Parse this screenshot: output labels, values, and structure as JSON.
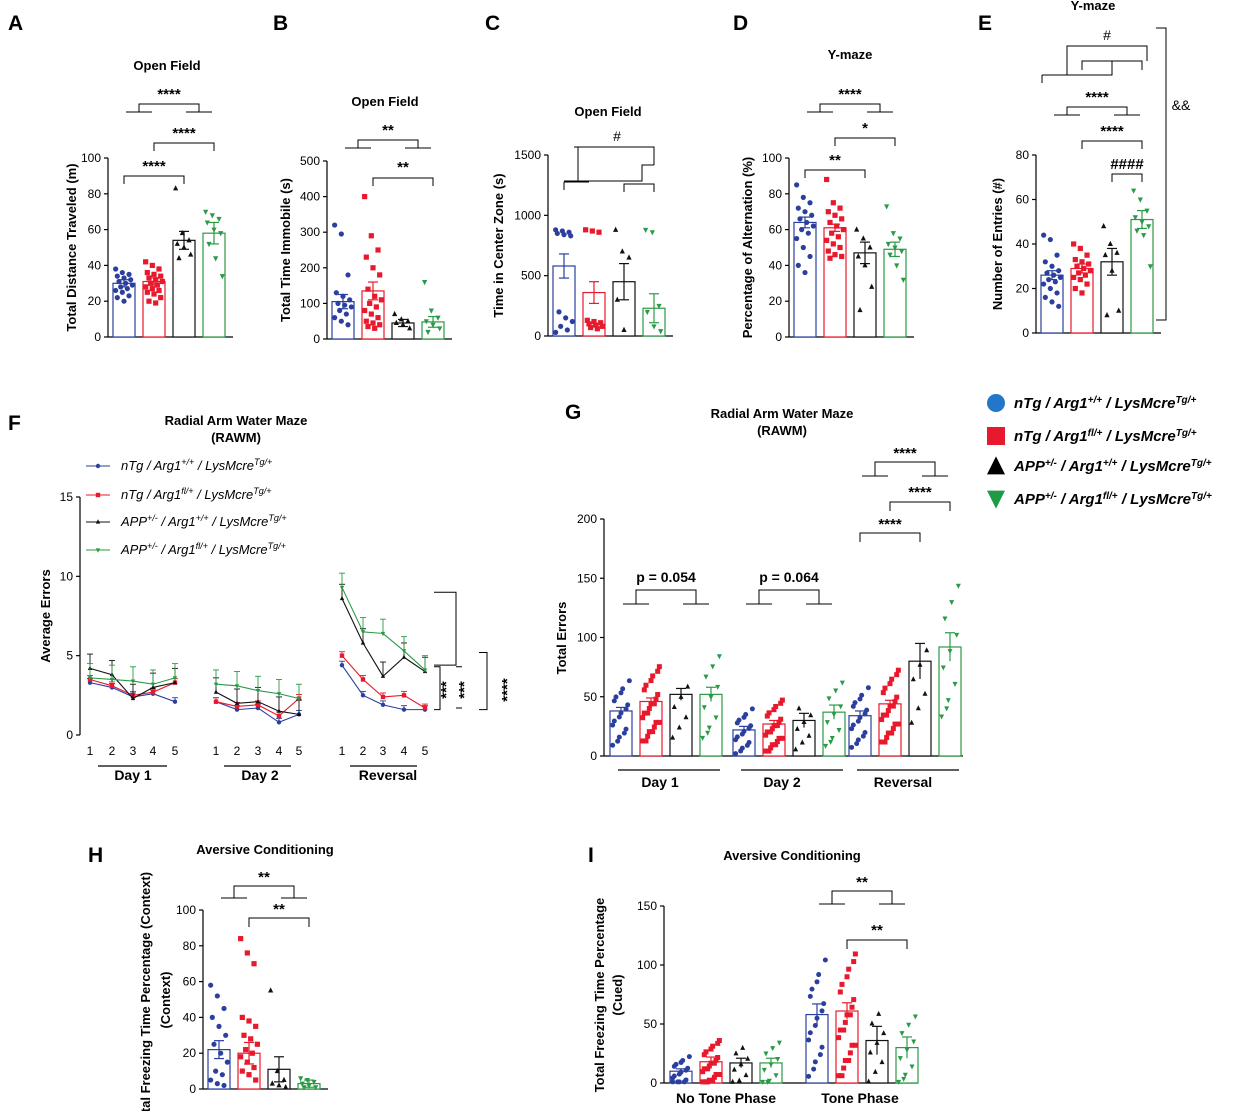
{
  "colors": {
    "g1": "#2b3f9e",
    "g2": "#e8192c",
    "g3": "#111111",
    "g4": "#2a9a46",
    "legend_blue": "#2277c8",
    "legend_green": "#1f9a46"
  },
  "legend_main": [
    {
      "label": "nTg / Arg1",
      "sup": "+/+",
      "tail": " / LysMcre",
      "tailsup": "Tg/+",
      "shape": "circle"
    },
    {
      "label": "nTg / Arg1",
      "sup": "fl/+",
      "tail": " / LysMcre",
      "tailsup": "Tg/+",
      "shape": "square"
    },
    {
      "label": "APP",
      "sup": "+/-",
      "mid": " / Arg1",
      "midsup": "+/+",
      "tail": " / LysMcre",
      "tailsup": "Tg/+",
      "shape": "triangle-up"
    },
    {
      "label": "APP",
      "sup": "+/-",
      "mid": " / Arg1",
      "midsup": "fl/+",
      "tail": " / LysMcre",
      "tailsup": "Tg/+",
      "shape": "triangle-down"
    }
  ],
  "chart_data": [
    {
      "panel": "A",
      "type": "bar",
      "title": "Open Field",
      "ylabel": "Total Distance Traveled (m)",
      "ylim": [
        0,
        100
      ],
      "ticks": [
        0,
        20,
        40,
        60,
        80,
        100
      ],
      "means": [
        30,
        31,
        54,
        58
      ],
      "sem": [
        2,
        2,
        5,
        6
      ],
      "points": [
        [
          38,
          36,
          35,
          34,
          33,
          32,
          31,
          30,
          29,
          28,
          27,
          26,
          25,
          23,
          22,
          20
        ],
        [
          42,
          40,
          38,
          36,
          35,
          34,
          33,
          32,
          31,
          30,
          29,
          28,
          27,
          26,
          25,
          24,
          22,
          20,
          19
        ],
        [
          83,
          58,
          54,
          52,
          50,
          46,
          44
        ],
        [
          70,
          68,
          66,
          64,
          60,
          58,
          52,
          44,
          34
        ]
      ],
      "annotations": [
        "****",
        "****",
        "****"
      ]
    },
    {
      "panel": "B",
      "type": "bar",
      "title": "Open Field",
      "ylabel": "Total Time Immobile (s)",
      "ylim": [
        0,
        500
      ],
      "ticks": [
        0,
        100,
        200,
        300,
        400,
        500
      ],
      "means": [
        105,
        135,
        45,
        48
      ],
      "sem": [
        20,
        25,
        10,
        15
      ],
      "points": [
        [
          320,
          295,
          180,
          130,
          120,
          110,
          100,
          95,
          90,
          80,
          70,
          60,
          50,
          40
        ],
        [
          400,
          290,
          250,
          230,
          200,
          180,
          140,
          120,
          110,
          100,
          90,
          80,
          70,
          60,
          50,
          45,
          40,
          35,
          30
        ],
        [
          70,
          55,
          50,
          45,
          40,
          30
        ],
        [
          160,
          80,
          60,
          50,
          40,
          30,
          20
        ]
      ],
      "annotations": [
        "**",
        "**"
      ]
    },
    {
      "panel": "C",
      "type": "bar",
      "title": "Open Field",
      "ylabel": "Time in Center Zone (s)",
      "ylim": [
        0,
        1500
      ],
      "ticks": [
        0,
        500,
        1000,
        1500
      ],
      "means": [
        580,
        360,
        450,
        230
      ],
      "sem": [
        100,
        90,
        150,
        120
      ],
      "points": [
        [
          880,
          870,
          860,
          850,
          840,
          830,
          200,
          150,
          120,
          80,
          50,
          30
        ],
        [
          880,
          870,
          860,
          130,
          120,
          110,
          100,
          90,
          80,
          70,
          60
        ],
        [
          880,
          700,
          650,
          300,
          50
        ],
        [
          880,
          860,
          250,
          200,
          80,
          40
        ]
      ],
      "annotations": [
        "#"
      ]
    },
    {
      "panel": "D",
      "type": "bar",
      "title": "Y-maze",
      "ylabel": "Percentage of Alternation (%)",
      "ylim": [
        0,
        100
      ],
      "ticks": [
        0,
        20,
        40,
        60,
        80,
        100
      ],
      "means": [
        64,
        61,
        47,
        49
      ],
      "sem": [
        3,
        2,
        6,
        4
      ],
      "points": [
        [
          85,
          78,
          75,
          72,
          70,
          68,
          66,
          64,
          62,
          60,
          58,
          55,
          50,
          45,
          40,
          36
        ],
        [
          88,
          75,
          72,
          70,
          68,
          66,
          64,
          62,
          60,
          58,
          56,
          54,
          52,
          50,
          48,
          46,
          45,
          44
        ],
        [
          60,
          55,
          50,
          45,
          40,
          28,
          15
        ],
        [
          73,
          58,
          55,
          52,
          50,
          48,
          46,
          40,
          32
        ]
      ],
      "annotations": [
        "****",
        "*",
        "**"
      ]
    },
    {
      "panel": "E",
      "type": "bar",
      "title": "Y-maze",
      "ylabel": "Number of Entries (#)",
      "ylim": [
        0,
        80
      ],
      "ticks": [
        0,
        20,
        40,
        60,
        80
      ],
      "means": [
        26,
        29,
        32,
        51
      ],
      "sem": [
        2,
        2,
        6,
        4
      ],
      "points": [
        [
          44,
          42,
          35,
          32,
          30,
          28,
          27,
          26,
          25,
          24,
          23,
          22,
          20,
          18,
          16,
          14,
          12
        ],
        [
          40,
          38,
          35,
          33,
          32,
          31,
          30,
          29,
          28,
          27,
          26,
          25,
          24,
          22,
          20,
          18
        ],
        [
          48,
          40,
          36,
          35,
          28,
          10,
          8
        ],
        [
          64,
          60,
          55,
          52,
          50,
          48,
          46,
          44,
          30
        ]
      ],
      "annotations": [
        "#",
        "****",
        "****",
        "####",
        "&&"
      ]
    },
    {
      "panel": "F",
      "type": "line",
      "title": "Radial Arm Water Maze",
      "subtitle": "(RAWM)",
      "ylabel": "Average Errors",
      "ylim": [
        0,
        15
      ],
      "ticks": [
        0,
        5,
        10,
        15
      ],
      "xticks": [
        "1",
        "2",
        "3",
        "4",
        "5"
      ],
      "groups": [
        "Day 1",
        "Day 2",
        "Reversal"
      ],
      "series": [
        {
          "values": [
            [
              3.3,
              3.0,
              2.4,
              2.6,
              2.1
            ],
            [
              2.1,
              1.6,
              1.7,
              0.8,
              1.3
            ],
            [
              4.4,
              2.5,
              1.9,
              1.6,
              1.6
            ]
          ]
        },
        {
          "values": [
            [
              3.5,
              3.1,
              2.5,
              2.7,
              3.3
            ],
            [
              2.1,
              1.8,
              1.9,
              1.2,
              2.3
            ],
            [
              5.0,
              3.5,
              2.4,
              2.5,
              1.7
            ]
          ]
        },
        {
          "values": [
            [
              4.2,
              3.8,
              2.3,
              3.0,
              3.3
            ],
            [
              2.7,
              2.0,
              2.1,
              1.5,
              1.3
            ],
            [
              8.6,
              5.8,
              3.7,
              4.9,
              4.0
            ]
          ]
        },
        {
          "values": [
            [
              3.6,
              3.5,
              3.4,
              3.2,
              3.6
            ],
            [
              3.2,
              3.1,
              2.8,
              2.6,
              2.3
            ],
            [
              9.3,
              6.5,
              6.4,
              5.3,
              4.1
            ]
          ]
        }
      ],
      "annotations": [
        "***",
        "***",
        "****"
      ]
    },
    {
      "panel": "G",
      "type": "bar",
      "title": "Radial Arm Water Maze",
      "subtitle": "(RAWM)",
      "ylabel": "Total Errors",
      "ylim": [
        0,
        200
      ],
      "ticks": [
        0,
        50,
        100,
        150,
        200
      ],
      "groups": [
        "Day 1",
        "Day 2",
        "Reversal"
      ],
      "means": [
        [
          38,
          46,
          52,
          52
        ],
        [
          22,
          27,
          30,
          37
        ],
        [
          34,
          44,
          80,
          92
        ]
      ],
      "sem": [
        [
          3,
          3,
          5,
          6
        ],
        [
          3,
          3,
          6,
          6
        ],
        [
          4,
          3,
          15,
          12
        ]
      ],
      "annotations": [
        "p = 0.054",
        "p = 0.064",
        "****",
        "****",
        "****"
      ]
    },
    {
      "panel": "H",
      "type": "bar",
      "title": "Aversive Conditioning",
      "ylabel": "Total Freezing Time Percentage (Context)",
      "ylim": [
        0,
        100
      ],
      "ticks": [
        0,
        20,
        40,
        60,
        80,
        100
      ],
      "means": [
        22,
        20,
        11,
        3
      ],
      "sem": [
        5,
        6,
        7,
        2
      ],
      "points": [
        [
          58,
          52,
          45,
          40,
          35,
          30,
          25,
          20,
          15,
          10,
          8,
          5,
          3,
          2
        ],
        [
          84,
          76,
          70,
          40,
          38,
          35,
          30,
          28,
          25,
          22,
          20,
          18,
          15,
          12,
          10,
          8,
          5
        ],
        [
          55,
          10,
          5,
          3,
          2,
          1
        ],
        [
          6,
          5,
          4,
          3,
          2,
          1,
          1
        ]
      ],
      "annotations": [
        "**",
        "**"
      ]
    },
    {
      "panel": "I",
      "type": "bar",
      "title": "Aversive Conditioning",
      "ylabel": "Total Freezing Time Percentage (Cued)",
      "ylim": [
        0,
        150
      ],
      "ticks": [
        0,
        50,
        100,
        150
      ],
      "groups": [
        "No Tone Phase",
        "Tone Phase"
      ],
      "means": [
        [
          10,
          18,
          17,
          17
        ],
        [
          58,
          61,
          36,
          30
        ]
      ],
      "sem": [
        [
          2,
          4,
          4,
          4
        ],
        [
          9,
          7,
          12,
          9
        ]
      ],
      "annotations": [
        "**",
        "**"
      ]
    }
  ],
  "text": {
    "A": "A",
    "B": "B",
    "C": "C",
    "D": "D",
    "E": "E",
    "F": "F",
    "G": "G",
    "H": "H",
    "I": "I",
    "open_field": "Open Field",
    "ymaze": "Y-maze",
    "rawm": "Radial Arm Water Maze",
    "rawm_sub": "(RAWM)",
    "aversive": "Aversive Conditioning",
    "day1": "Day 1",
    "day2": "Day 2",
    "reversal": "Reversal",
    "no_tone": "No Tone Phase",
    "tone": "Tone Phase"
  }
}
